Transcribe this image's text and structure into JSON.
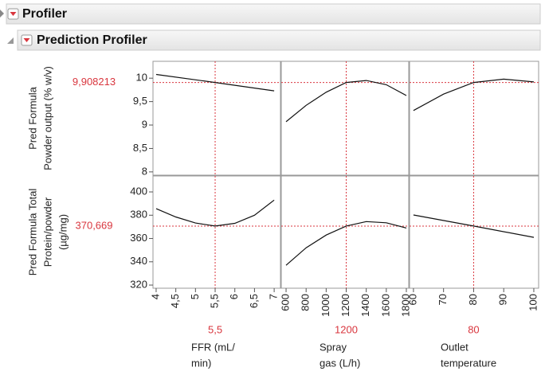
{
  "header": {
    "title": "Profiler"
  },
  "profiler": {
    "title": "Prediction Profiler",
    "factors": [
      {
        "label": [
          "FFR (mL/",
          "min)"
        ],
        "current": 5.5,
        "current_label": "5,5",
        "xlim": [
          3.92,
          7.16
        ],
        "xticks": [
          4,
          {
            "value": 4.5,
            "label": "4,5"
          },
          5,
          {
            "value": 5.5,
            "label": "5,5"
          },
          6,
          {
            "value": 6.5,
            "label": "6,5"
          },
          7
        ]
      },
      {
        "label": [
          "Spray",
          "gas (L/h)"
        ],
        "current": 1200,
        "current_label": "1200",
        "xlim": [
          552,
          1824
        ],
        "xticks": [
          600,
          800,
          1000,
          1200,
          1400,
          1600,
          1800
        ]
      },
      {
        "label": [
          "Outlet",
          "temperature"
        ],
        "current": 80,
        "current_label": "80",
        "xlim": [
          58.7,
          101.6
        ],
        "xticks": [
          60,
          70,
          80,
          90,
          100
        ]
      }
    ],
    "responses": [
      {
        "label": [
          "Pred Formula",
          "Powder output (% w/v)"
        ],
        "current": 9.908213,
        "current_label": "9,908213",
        "ylim": [
          7.93,
          10.36
        ],
        "yticks": [
          8,
          {
            "value": 8.5,
            "label": "8,5"
          },
          9,
          {
            "value": 9.5,
            "label": "9,5"
          },
          10
        ],
        "curves": [
          {
            "x": [
              4,
              5.5,
              7
            ],
            "values": [
              10.08,
              9.908,
              9.73
            ]
          },
          {
            "x": [
              600,
              800,
              1000,
              1200,
              1400,
              1600,
              1800
            ],
            "values": [
              9.07,
              9.42,
              9.7,
              9.908,
              9.95,
              9.86,
              9.63
            ]
          },
          {
            "x": [
              60,
              70,
              80,
              90,
              100
            ],
            "values": [
              9.31,
              9.66,
              9.908,
              9.98,
              9.92
            ]
          }
        ]
      },
      {
        "label": [
          "Pred Formula Total",
          "Protein/powder",
          "(µg/mg)"
        ],
        "current": 370.669,
        "current_label": "370,669",
        "ylim": [
          317.3,
          413.7
        ],
        "yticks": [
          320,
          340,
          360,
          380,
          400
        ],
        "curves": [
          {
            "x": [
              4,
              4.5,
              5,
              5.5,
              6,
              6.5,
              7
            ],
            "values": [
              385.6,
              378.5,
              373.3,
              370.7,
              373,
              380,
              393
            ]
          },
          {
            "x": [
              600,
              800,
              1000,
              1200,
              1400,
              1600,
              1800
            ],
            "values": [
              337,
              352,
              363,
              370.7,
              374.5,
              373.5,
              369
            ]
          },
          {
            "x": [
              60,
              80,
              100
            ],
            "values": [
              380.2,
              370.7,
              361
            ]
          }
        ]
      }
    ]
  }
}
